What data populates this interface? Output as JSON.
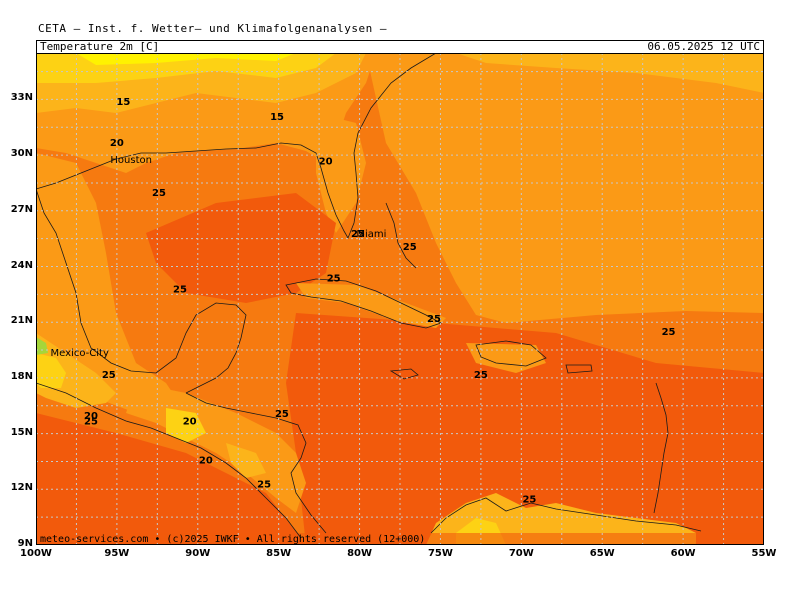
{
  "header": {
    "source": "CETA — Inst. f. Wetter— und Klimafolgenanalysen —",
    "variable": "Temperature 2m [C]",
    "valid_time": "06.05.2025 12 UTC"
  },
  "footer": {
    "credit": "meteo-services.com • (c)2025 IWKF • All rights reserved (12+000)"
  },
  "axes": {
    "lat_labels": [
      "33N",
      "30N",
      "27N",
      "24N",
      "21N",
      "18N",
      "15N",
      "12N",
      "9N"
    ],
    "lon_labels": [
      "100W",
      "95W",
      "90W",
      "85W",
      "80W",
      "75W",
      "70W",
      "65W",
      "60W",
      "55W"
    ]
  },
  "cities": [
    {
      "name": "Houston",
      "lon": -95.4,
      "lat": 29.8
    },
    {
      "name": "Miami",
      "lon": -80.2,
      "lat": 25.8
    },
    {
      "name": "Mexico-City",
      "lon": -99.1,
      "lat": 19.4
    }
  ],
  "contour_labels": [
    {
      "text": "15",
      "lon": -94.6,
      "lat": 32.7
    },
    {
      "text": "15",
      "lon": -85.1,
      "lat": 31.9
    },
    {
      "text": "20",
      "lon": -95.0,
      "lat": 30.5
    },
    {
      "text": "20",
      "lon": -82.1,
      "lat": 29.5
    },
    {
      "text": "25",
      "lon": -92.4,
      "lat": 27.8
    },
    {
      "text": "25",
      "lon": -80.1,
      "lat": 25.6
    },
    {
      "text": "25",
      "lon": -76.9,
      "lat": 24.9
    },
    {
      "text": "25",
      "lon": -81.6,
      "lat": 23.2
    },
    {
      "text": "25",
      "lon": -91.1,
      "lat": 22.6
    },
    {
      "text": "25",
      "lon": -75.4,
      "lat": 21.0
    },
    {
      "text": "25",
      "lon": -60.9,
      "lat": 20.3
    },
    {
      "text": "25",
      "lon": -95.5,
      "lat": 18.0
    },
    {
      "text": "25",
      "lon": -72.5,
      "lat": 18.0
    },
    {
      "text": "25",
      "lon": -84.8,
      "lat": 15.9
    },
    {
      "text": "20",
      "lon": -96.6,
      "lat": 15.8
    },
    {
      "text": "25",
      "lon": -96.6,
      "lat": 15.5
    },
    {
      "text": "20",
      "lon": -90.5,
      "lat": 15.5
    },
    {
      "text": "20",
      "lon": -89.5,
      "lat": 13.4
    },
    {
      "text": "25",
      "lon": -85.9,
      "lat": 12.1
    },
    {
      "text": "25",
      "lon": -69.5,
      "lat": 11.3
    }
  ],
  "colors": {
    "t_gt25": "#f25a0c",
    "t_25": "#f67a10",
    "t_22": "#fb9a16",
    "t_20": "#fcb41a",
    "t_17": "#fdd214",
    "t_15": "#fff200",
    "land_cool": "#a5d63a",
    "frame": "#000000",
    "grid": "#c8c8c8"
  }
}
